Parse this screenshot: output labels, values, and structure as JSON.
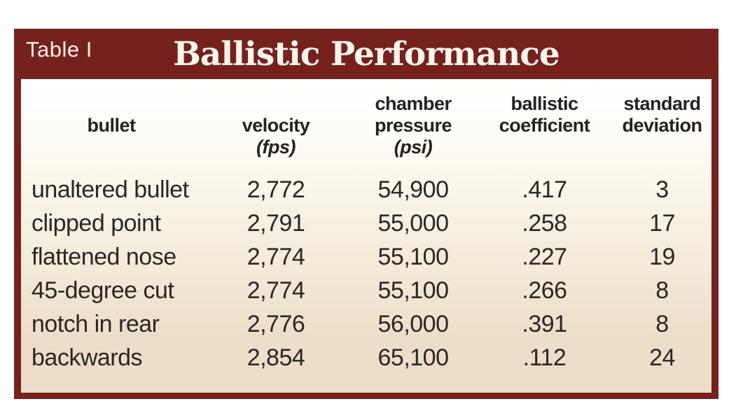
{
  "table": {
    "tag": "Table I",
    "title": "Ballistic Performance",
    "columns": [
      {
        "lines": [
          "",
          "bullet",
          ""
        ]
      },
      {
        "lines": [
          "",
          "velocity",
          "(fps)"
        ]
      },
      {
        "lines": [
          "chamber",
          "pressure",
          "(psi)"
        ]
      },
      {
        "lines": [
          "ballistic",
          "coefficient",
          ""
        ]
      },
      {
        "lines": [
          "standard",
          "deviation",
          ""
        ]
      }
    ],
    "rows": [
      {
        "cells": [
          "unaltered bullet",
          "2,772",
          "54,900",
          ".417",
          "3"
        ]
      },
      {
        "cells": [
          "clipped point",
          "2,791",
          "55,000",
          ".258",
          "17"
        ]
      },
      {
        "cells": [
          "flattened nose",
          "2,774",
          "55,100",
          ".227",
          "19"
        ]
      },
      {
        "cells": [
          "45-degree cut",
          "2,774",
          "55,100",
          ".266",
          "8"
        ]
      },
      {
        "cells": [
          "notch in rear",
          "2,776",
          "56,000",
          ".391",
          "8"
        ]
      },
      {
        "cells": [
          "backwards",
          "2,854",
          "65,100",
          ".112",
          "24"
        ]
      }
    ]
  },
  "colors": {
    "frame_maroon": "#75221f",
    "body_gradient_top": "#ffffff",
    "body_gradient_bottom": "#ecdfc9",
    "header_text_cream": "#fbf5ea",
    "body_text_dark": "#2b2725"
  }
}
